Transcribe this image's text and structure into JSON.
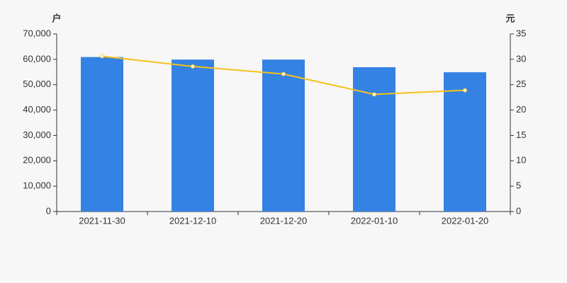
{
  "chart_data": {
    "type": "bar",
    "y_label": "户",
    "y2_label": "元",
    "categories": [
      "2021-11-30",
      "2021-12-10",
      "2021-12-20",
      "2022-01-10",
      "2022-01-20"
    ],
    "series": [
      {
        "color": "#3482e3",
        "values": [
          60900,
          59900,
          59900,
          56900,
          54900
        ]
      },
      {
        "color": "#f5c21b",
        "type": "line",
        "axis": "y2",
        "values": [
          30.6,
          28.6,
          27.1,
          23.1,
          23.9
        ]
      }
    ],
    "ylim": [
      0,
      70000
    ],
    "yticks": [
      0,
      {
        "value": 10000,
        "label": "10,000"
      },
      {
        "value": 20000,
        "label": "20,000"
      },
      {
        "value": 30000,
        "label": "30,000"
      },
      {
        "value": 40000,
        "label": "40,000"
      },
      {
        "value": 50000,
        "label": "50,000"
      },
      {
        "value": 60000,
        "label": "60,000"
      },
      {
        "value": 70000,
        "label": "70,000"
      }
    ],
    "y2lim": [
      0,
      35
    ],
    "y2ticks": [
      0,
      5,
      10,
      15,
      20,
      25,
      30,
      35
    ]
  }
}
